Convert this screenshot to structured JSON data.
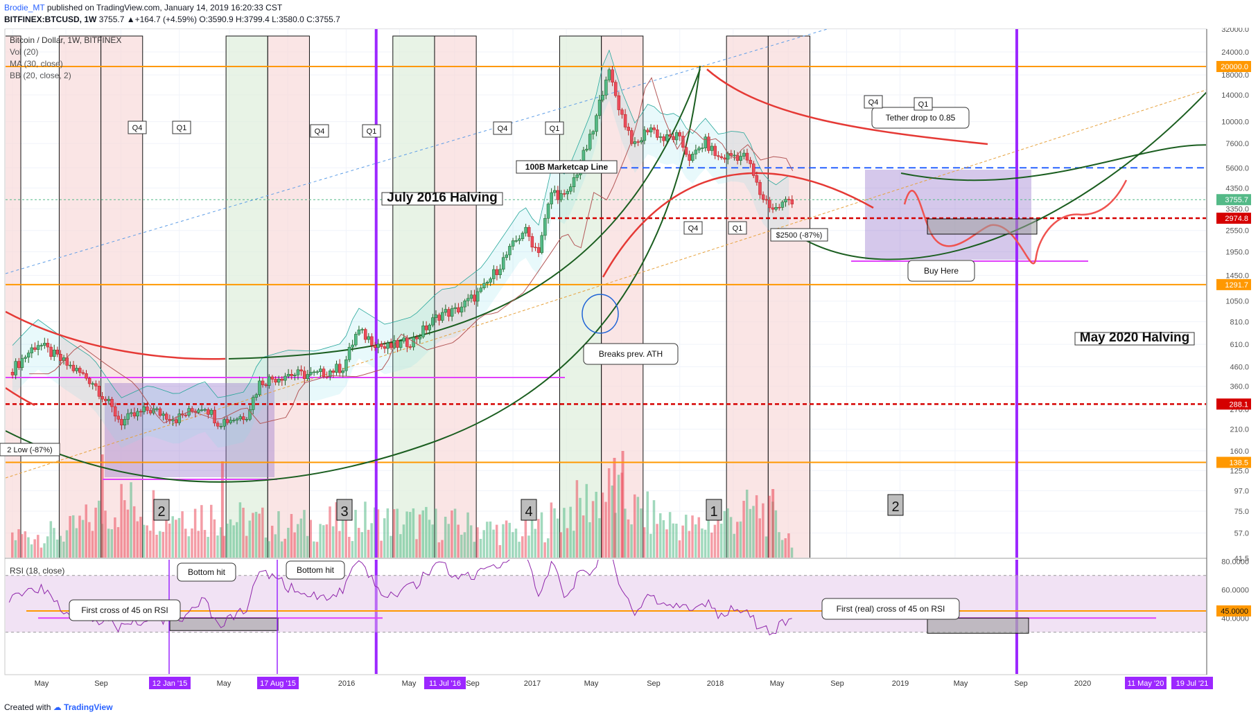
{
  "header": {
    "author": "Brodie_MT",
    "published": "published on TradingView.com, January 14, 2019 16:20:33 CST",
    "symbol": "BITFINEX:BTCUSD, 1W",
    "ohlc": "3755.7 ▲+164.7 (+4.59%) O:3590.9 H:3799.4 L:3580.0 C:3755.7"
  },
  "footer": {
    "created_with": "Created with",
    "brand": "TradingView"
  },
  "legend": {
    "title": "Bitcoin / Dollar, 1W, BITFINEX",
    "lines": [
      "Vol (20)",
      "MA (30, close)",
      "BB (20, close, 2)"
    ],
    "rsi": "RSI (18, close)"
  },
  "colors": {
    "up": "#53b987",
    "down": "#eb4d5c",
    "halving": "#9c27ff",
    "orange": "#ff9800",
    "magenta": "#e040fb",
    "red_dash": "#d50000",
    "blue_dash": "#2962ff",
    "arc_green": "#1b5e20",
    "arc_red": "#e53935"
  },
  "chart_data": [
    {
      "type": "line",
      "title": "Bitcoin / Dollar, 1W, BITFINEX",
      "scale": "log",
      "ylim": [
        41.5,
        32000
      ],
      "price_ticks": [
        "32000.0",
        "24000.0",
        "18000.0",
        "14000.0",
        "10000.0",
        "7600.0",
        "5600.0",
        "4350.0",
        "3350.0",
        "2550.0",
        "1950.0",
        "1450.0",
        "1050.0",
        "810.0",
        "610.0",
        "460.0",
        "360.0",
        "270.0",
        "210.0",
        "160.0",
        "125.0",
        "97.0",
        "75.0",
        "57.0",
        "41.5"
      ],
      "price_labels": [
        {
          "text": "20000.0",
          "value": 20000,
          "color": "#ff9800"
        },
        {
          "text": "3755.7",
          "value": 3755.7,
          "color": "#53b987"
        },
        {
          "text": "2974.8",
          "value": 2974.8,
          "color": "#d50000"
        },
        {
          "text": "1291.7",
          "value": 1291.7,
          "color": "#ff9800"
        },
        {
          "text": "288.1",
          "value": 288.1,
          "color": "#d50000"
        },
        {
          "text": "138.5",
          "value": 138.5,
          "color": "#ff9800"
        }
      ],
      "time_labels": [
        "May",
        "Sep",
        "12 Jan '15",
        "May",
        "17 Aug '15",
        "2016",
        "May",
        "11 Jul '16",
        "Sep",
        "2017",
        "May",
        "Sep",
        "2018",
        "May",
        "Sep",
        "2019",
        "May",
        "Sep",
        "2020",
        "11 May '20",
        "19 Jul '21"
      ],
      "highlighted_time_labels": [
        "12 Jan '15",
        "17 Aug '15",
        "11 Jul '16",
        "11 May '20",
        "19 Jul '21"
      ],
      "price_path": [
        [
          "2014-05",
          430
        ],
        [
          "2014-07",
          620
        ],
        [
          "2014-09",
          480
        ],
        [
          "2014-11",
          380
        ],
        [
          "2015-01",
          230
        ],
        [
          "2015-03",
          270
        ],
        [
          "2015-05",
          240
        ],
        [
          "2015-07",
          285
        ],
        [
          "2015-08",
          230
        ],
        [
          "2015-10",
          250
        ],
        [
          "2015-11",
          380
        ],
        [
          "2016-01",
          420
        ],
        [
          "2016-03",
          415
        ],
        [
          "2016-05",
          460
        ],
        [
          "2016-06",
          720
        ],
        [
          "2016-08",
          580
        ],
        [
          "2016-10",
          640
        ],
        [
          "2016-12",
          900
        ],
        [
          "2017-01",
          920
        ],
        [
          "2017-03",
          1200
        ],
        [
          "2017-05",
          2000
        ],
        [
          "2017-06",
          2600
        ],
        [
          "2017-07",
          1950
        ],
        [
          "2017-08",
          4200
        ],
        [
          "2017-09",
          3800
        ],
        [
          "2017-10",
          5800
        ],
        [
          "2017-11",
          9000
        ],
        [
          "2017-12",
          19500
        ],
        [
          "2018-01",
          11000
        ],
        [
          "2018-02",
          7200
        ],
        [
          "2018-03",
          9500
        ],
        [
          "2018-04",
          8000
        ],
        [
          "2018-05",
          8300
        ],
        [
          "2018-06",
          6200
        ],
        [
          "2018-07",
          7800
        ],
        [
          "2018-08",
          6300
        ],
        [
          "2018-09",
          6600
        ],
        [
          "2018-10",
          6400
        ],
        [
          "2018-11",
          4000
        ],
        [
          "2018-12",
          3300
        ],
        [
          "2019-01",
          3755.7
        ]
      ],
      "volume_profile": [
        [
          "2014-05",
          40
        ],
        [
          "2014-09",
          45
        ],
        [
          "2015-01",
          100
        ],
        [
          "2015-08",
          75
        ],
        [
          "2016-01",
          55
        ],
        [
          "2016-06",
          70
        ],
        [
          "2017-01",
          60
        ],
        [
          "2017-06",
          45
        ],
        [
          "2017-12",
          120
        ],
        [
          "2018-02",
          85
        ],
        [
          "2018-06",
          55
        ],
        [
          "2018-11",
          90
        ],
        [
          "2019-01",
          40
        ]
      ],
      "levels": [
        {
          "value": 20000,
          "style": "orange"
        },
        {
          "value": 5600,
          "style": "blue-dash",
          "label": "100B Marketcap Line"
        },
        {
          "value": 2974.8,
          "style": "red-dash"
        },
        {
          "value": 1291.7,
          "style": "orange"
        },
        {
          "value": 288.1,
          "style": "red-dash"
        },
        {
          "value": 138.5,
          "style": "orange"
        }
      ],
      "quarter_boxes": [
        {
          "q4": "Q4",
          "q1": "Q1",
          "number": "2"
        },
        {
          "q4": "Q4",
          "q1": "Q1",
          "number": "3"
        },
        {
          "q4": "Q4",
          "q1": "Q1",
          "number": "4"
        },
        {
          "q4": "Q4",
          "q1": "Q1",
          "number": "1"
        },
        {
          "q4": "Q4",
          "q1": "Q1",
          "number": "2"
        }
      ],
      "annotations": [
        "July 2016 Halving",
        "May 2020 Halving",
        "100B Marketcap Line",
        "Tether drop to 0.85",
        "Breaks prev. ATH",
        "Buy Here",
        "$2500 (-87%)",
        "2 Low (-87%)"
      ]
    },
    {
      "type": "line",
      "title": "RSI (18, close)",
      "ylim": [
        30,
        90
      ],
      "ticks": [
        "80.0000",
        "60.0000",
        "40.0000"
      ],
      "value_label": "45.0000",
      "level": 45,
      "annotations": [
        "Bottom hit",
        "Bottom hit",
        "First cross of 45 on RSI",
        "First (real) cross of 45 on RSI"
      ],
      "rsi_path": [
        [
          "2014-05",
          55
        ],
        [
          "2014-07",
          62
        ],
        [
          "2014-09",
          45
        ],
        [
          "2014-11",
          40
        ],
        [
          "2015-01",
          33
        ],
        [
          "2015-03",
          40
        ],
        [
          "2015-05",
          38
        ],
        [
          "2015-07",
          52
        ],
        [
          "2015-08",
          35
        ],
        [
          "2015-10",
          45
        ],
        [
          "2015-11",
          75
        ],
        [
          "2016-01",
          62
        ],
        [
          "2016-03",
          55
        ],
        [
          "2016-05",
          58
        ],
        [
          "2016-06",
          80
        ],
        [
          "2016-08",
          55
        ],
        [
          "2016-10",
          62
        ],
        [
          "2016-12",
          80
        ],
        [
          "2017-01",
          68
        ],
        [
          "2017-03",
          72
        ],
        [
          "2017-05",
          82
        ],
        [
          "2017-06",
          88
        ],
        [
          "2017-07",
          55
        ],
        [
          "2017-08",
          78
        ],
        [
          "2017-09",
          55
        ],
        [
          "2017-10",
          72
        ],
        [
          "2017-11",
          75
        ],
        [
          "2017-12",
          90
        ],
        [
          "2018-01",
          62
        ],
        [
          "2018-02",
          42
        ],
        [
          "2018-03",
          55
        ],
        [
          "2018-04",
          48
        ],
        [
          "2018-05",
          52
        ],
        [
          "2018-06",
          42
        ],
        [
          "2018-07",
          52
        ],
        [
          "2018-08",
          42
        ],
        [
          "2018-09",
          47
        ],
        [
          "2018-10",
          46
        ],
        [
          "2018-11",
          30
        ],
        [
          "2018-12",
          32
        ],
        [
          "2019-01",
          40
        ]
      ]
    }
  ]
}
